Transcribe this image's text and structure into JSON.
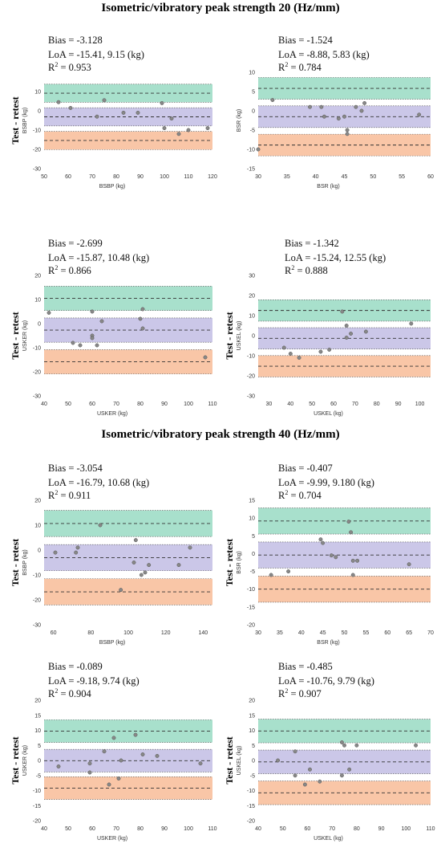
{
  "titles": {
    "hz20": "Isometric/vibratory peak strength 20 (Hz/mm)",
    "hz40": "Isometric/vibratory peak strength 40 (Hz/mm)"
  },
  "colors": {
    "upper_band": "#a8e0cc",
    "middle_band": "#cbc7e8",
    "lower_band": "#f9c6a7",
    "point": "#888888",
    "line": "#333333"
  },
  "chart_data": [
    {
      "type": "scatter",
      "title": "Isometric/vibratory peak strength 20 (Hz/mm)",
      "stats": {
        "bias": "Bias = -3.128",
        "loa": "LoA = -15.41, 9.15 (kg)",
        "r2": "= 0.953"
      },
      "ylabel_main": "Test - retest",
      "ylabel_axis": "BSBP (kg)",
      "xlabel": "BSBP (kg)",
      "xlim": [
        50,
        120
      ],
      "ylim": [
        -30,
        20
      ],
      "xticks": [
        "50",
        "60",
        "70",
        "80",
        "90",
        "100",
        "110",
        "120"
      ],
      "yticks": [
        "-30",
        "-20",
        "-10",
        "0",
        "10"
      ],
      "bias": -3.128,
      "loa": [
        -15.41,
        9.15
      ],
      "points": [
        [
          56,
          4.5
        ],
        [
          61,
          1.5
        ],
        [
          72,
          -3
        ],
        [
          75,
          5.5
        ],
        [
          83,
          -1
        ],
        [
          89,
          -1
        ],
        [
          99,
          4
        ],
        [
          100,
          -9
        ],
        [
          103,
          -4
        ],
        [
          106,
          -12
        ],
        [
          110,
          -10
        ],
        [
          118,
          -9
        ]
      ]
    },
    {
      "type": "scatter",
      "title": "Isometric/vibratory peak strength 20 (Hz/mm)",
      "stats": {
        "bias": "Bias = -1.524",
        "loa": "LoA = -8.88, 5.83 (kg)",
        "r2": "= 0.784"
      },
      "ylabel_main": "",
      "ylabel_axis": "BSR (kg)",
      "xlabel": "BSR (kg)",
      "xlim": [
        30,
        60
      ],
      "ylim": [
        -15,
        10
      ],
      "xticks": [
        "30",
        "35",
        "40",
        "45",
        "50",
        "55",
        "60"
      ],
      "yticks": [
        "-15",
        "-10",
        "-5",
        "0",
        "5",
        "10"
      ],
      "bias": -1.524,
      "loa": [
        -8.88,
        5.83
      ],
      "points": [
        [
          30,
          -10
        ],
        [
          32.5,
          2.8
        ],
        [
          39,
          1
        ],
        [
          41,
          1
        ],
        [
          41.5,
          -1.5
        ],
        [
          44,
          -2
        ],
        [
          45,
          -1.5
        ],
        [
          45.5,
          -5
        ],
        [
          45.5,
          -6
        ],
        [
          47,
          1
        ],
        [
          48,
          0
        ],
        [
          48.5,
          2
        ],
        [
          58,
          -1
        ]
      ]
    },
    {
      "type": "scatter",
      "title": "Isometric/vibratory peak strength 20 (Hz/mm)",
      "stats": {
        "bias": "Bias = -2.699",
        "loa": "LoA = -15.87, 10.48 (kg)",
        "r2": "= 0.866"
      },
      "ylabel_main": "Test - retest",
      "ylabel_axis": "USKER (kg)",
      "xlabel": "USKER (kg)",
      "xlim": [
        40,
        110
      ],
      "ylim": [
        -30,
        20
      ],
      "xticks": [
        "40",
        "50",
        "60",
        "70",
        "80",
        "90",
        "100",
        "110"
      ],
      "yticks": [
        "-30",
        "-20",
        "-10",
        "0",
        "10",
        "20"
      ],
      "bias": -2.699,
      "loa": [
        -15.87,
        10.48
      ],
      "points": [
        [
          42,
          4.5
        ],
        [
          52,
          -8
        ],
        [
          55,
          -9
        ],
        [
          60,
          5
        ],
        [
          60,
          -5
        ],
        [
          60,
          -6
        ],
        [
          62,
          -9
        ],
        [
          64,
          1
        ],
        [
          80,
          2
        ],
        [
          81,
          6
        ],
        [
          81,
          -2
        ],
        [
          107,
          -14
        ]
      ]
    },
    {
      "type": "scatter",
      "title": "Isometric/vibratory peak strength 20 (Hz/mm)",
      "stats": {
        "bias": "Bias = -1.342",
        "loa": "LoA = -15.24, 12.55 (kg)",
        "r2": "= 0.888"
      },
      "ylabel_main": "Test - retest",
      "ylabel_axis": "USKEL (kg)",
      "xlabel": "USKEL (kg)",
      "xlim": [
        25,
        105
      ],
      "ylim": [
        -30,
        30
      ],
      "xticks": [
        "30",
        "40",
        "50",
        "60",
        "70",
        "80",
        "90",
        "100"
      ],
      "yticks": [
        "-30",
        "-20",
        "-10",
        "0",
        "10",
        "20",
        "30"
      ],
      "bias": -1.342,
      "loa": [
        -15.24,
        12.55
      ],
      "points": [
        [
          37,
          -6
        ],
        [
          40,
          -9
        ],
        [
          44,
          -11
        ],
        [
          54,
          -8
        ],
        [
          58,
          -7
        ],
        [
          64,
          12
        ],
        [
          66,
          -1
        ],
        [
          66,
          5
        ],
        [
          68,
          1
        ],
        [
          75,
          2
        ],
        [
          96,
          6
        ]
      ]
    },
    {
      "type": "scatter",
      "title": "Isometric/vibratory peak strength 40 (Hz/mm)",
      "stats": {
        "bias": "Bias = -3.054",
        "loa": "LoA = -16.79, 10.68 (kg)",
        "r2": "= 0.911"
      },
      "ylabel_main": "Test - retest",
      "ylabel_axis": "BSBP (kg)",
      "xlabel": "BSBP (kg)",
      "xlim": [
        55,
        145
      ],
      "ylim": [
        -30,
        20
      ],
      "xticks": [
        "60",
        "80",
        "100",
        "120",
        "140"
      ],
      "yticks": [
        "-30",
        "-20",
        "-10",
        "0",
        "10",
        "20"
      ],
      "bias": -3.054,
      "loa": [
        -16.79,
        10.68
      ],
      "points": [
        [
          61,
          -1
        ],
        [
          72,
          -1
        ],
        [
          73,
          1
        ],
        [
          85,
          10
        ],
        [
          96,
          -16
        ],
        [
          103,
          -5
        ],
        [
          104,
          4
        ],
        [
          107,
          -10
        ],
        [
          109,
          -9
        ],
        [
          111,
          -6
        ],
        [
          127,
          -6
        ],
        [
          133,
          1
        ]
      ]
    },
    {
      "type": "scatter",
      "title": "Isometric/vibratory peak strength 40 (Hz/mm)",
      "stats": {
        "bias": "Bias = -0.407",
        "loa": "LoA = -9.99, 9.180 (kg)",
        "r2": "= 0.704"
      },
      "ylabel_main": "Test - retest",
      "ylabel_axis": "BSR (kg)",
      "xlabel": "BSR (kg)",
      "xlim": [
        30,
        70
      ],
      "ylim": [
        -20,
        15
      ],
      "xticks": [
        "30",
        "35",
        "40",
        "45",
        "50",
        "55",
        "60",
        "65",
        "70"
      ],
      "yticks": [
        "-20",
        "-15",
        "-10",
        "-5",
        "0",
        "5",
        "10",
        "15"
      ],
      "bias": -0.407,
      "loa": [
        -9.99,
        9.18
      ],
      "points": [
        [
          33,
          -6
        ],
        [
          37,
          -5
        ],
        [
          44.5,
          4
        ],
        [
          45,
          3
        ],
        [
          47,
          -0.5
        ],
        [
          48,
          -1
        ],
        [
          51,
          9
        ],
        [
          51.5,
          6
        ],
        [
          52,
          -2
        ],
        [
          52,
          -6
        ],
        [
          53,
          -2
        ],
        [
          65,
          -3
        ]
      ]
    },
    {
      "type": "scatter",
      "title": "Isometric/vibratory peak strength 40 (Hz/mm)",
      "stats": {
        "bias": "Bias = -0.089",
        "loa": "LoA = -9.18, 9.74 (kg)",
        "r2": "= 0.904"
      },
      "ylabel_main": "Test - retest",
      "ylabel_axis": "USKER (kg)",
      "xlabel": "USKER (kg)",
      "xlim": [
        40,
        110
      ],
      "ylim": [
        -20,
        20
      ],
      "xticks": [
        "40",
        "50",
        "60",
        "70",
        "80",
        "90",
        "100",
        "110"
      ],
      "yticks": [
        "-20",
        "-15",
        "-10",
        "-5",
        "0",
        "5",
        "10",
        "15",
        "20"
      ],
      "bias": -0.089,
      "loa": [
        -9.18,
        9.74
      ],
      "points": [
        [
          46,
          -2
        ],
        [
          59,
          -1
        ],
        [
          59,
          -4
        ],
        [
          65,
          3
        ],
        [
          67,
          -8
        ],
        [
          69,
          7.5
        ],
        [
          71,
          -6
        ],
        [
          72,
          0
        ],
        [
          78,
          8.5
        ],
        [
          81,
          2
        ],
        [
          87,
          1.5
        ],
        [
          105,
          -1
        ]
      ]
    },
    {
      "type": "scatter",
      "title": "Isometric/vibratory peak strength 40 (Hz/mm)",
      "stats": {
        "bias": "Bias = -0.485",
        "loa": "LoA = -10.76, 9.79 (kg)",
        "r2": "= 0.907"
      },
      "ylabel_main": "Test - retest",
      "ylabel_axis": "USKEL (kg)",
      "xlabel": "USKEL (kg)",
      "xlim": [
        40,
        110
      ],
      "ylim": [
        -20,
        20
      ],
      "xticks": [
        "40",
        "50",
        "60",
        "70",
        "80",
        "90",
        "100",
        "110"
      ],
      "yticks": [
        "-20",
        "-15",
        "-10",
        "-5",
        "0",
        "5",
        "10",
        "15",
        "20"
      ],
      "bias": -0.485,
      "loa": [
        -10.76,
        9.79
      ],
      "points": [
        [
          48,
          0
        ],
        [
          55,
          3
        ],
        [
          55,
          -5
        ],
        [
          59,
          -8
        ],
        [
          61,
          -3
        ],
        [
          65,
          -7
        ],
        [
          74,
          6
        ],
        [
          74,
          -5
        ],
        [
          75,
          5
        ],
        [
          77,
          -3
        ],
        [
          80,
          5
        ],
        [
          104,
          5
        ]
      ]
    }
  ]
}
